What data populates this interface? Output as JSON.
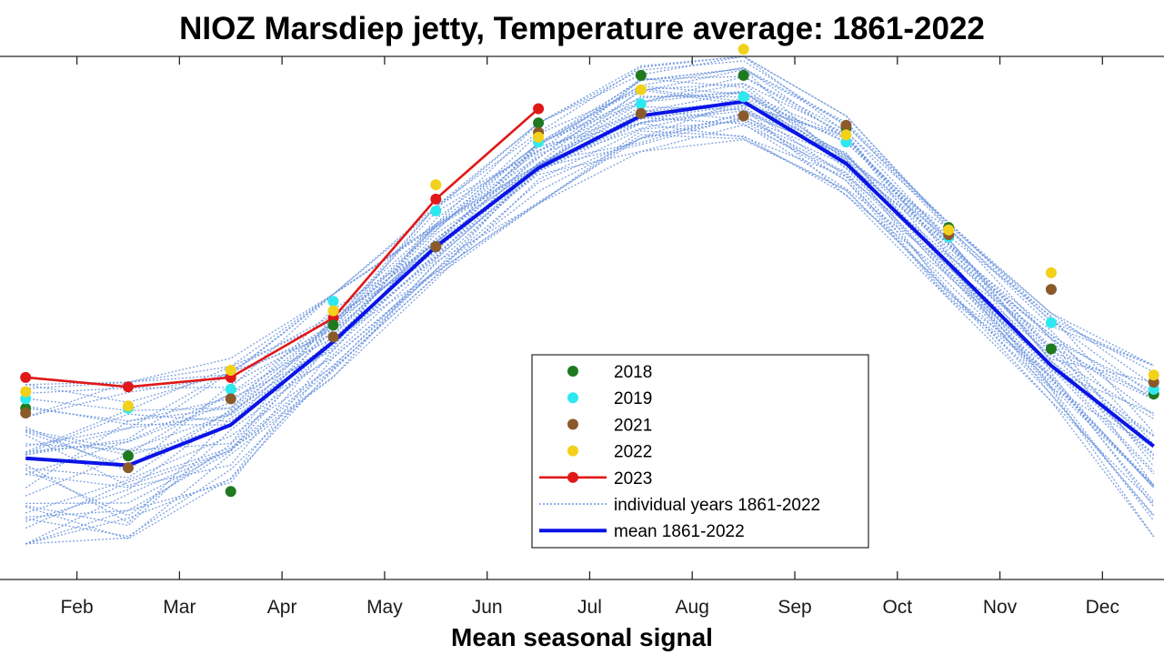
{
  "chart_data": {
    "type": "line",
    "title": "NIOZ Marsdiep jetty, Temperature average: 1861-2022",
    "xlabel": "Mean seasonal signal",
    "ylabel": "",
    "tick_labels": [
      "Feb",
      "Mar",
      "Apr",
      "May",
      "Jun",
      "Jul",
      "Aug",
      "Sep",
      "Oct",
      "Nov",
      "Dec"
    ],
    "x_domain": [
      0.75,
      12.1
    ],
    "y_domain": [
      -1,
      21
    ],
    "grid": false,
    "legend_position": "lower-center",
    "colors": {
      "mean": "#0a14e6",
      "individual": "#6f97de",
      "2018": "#1f7a1f",
      "2019": "#2ee8f0",
      "2021": "#8b5a2b",
      "2022": "#f3d11a",
      "2023": "#e01818"
    },
    "mean": {
      "name": "mean 1861-2022",
      "x": [
        1,
        2,
        3,
        4,
        5,
        6,
        7,
        8,
        9,
        10,
        11,
        12
      ],
      "y": [
        4.1,
        3.8,
        5.5,
        9.0,
        13.0,
        16.3,
        18.5,
        19.1,
        16.5,
        12.3,
        8.0,
        4.6
      ]
    },
    "individual_years": {
      "name": "individual years 1861-2022",
      "count_shown": 40,
      "envelope_low": [
        0.5,
        0.3,
        3.0,
        7.5,
        11.5,
        14.8,
        17.0,
        17.5,
        15.0,
        10.8,
        6.5,
        0.8
      ],
      "envelope_high": [
        7.2,
        7.3,
        8.3,
        11.0,
        14.7,
        18.2,
        20.6,
        21.0,
        18.5,
        14.0,
        10.2,
        8.0
      ]
    },
    "series": [
      {
        "name": "2018",
        "x": [
          1,
          2,
          3,
          4,
          5,
          6,
          7,
          8,
          9,
          10,
          11,
          12
        ],
        "y": [
          6.2,
          4.2,
          2.7,
          9.7,
          13.0,
          18.2,
          20.2,
          20.2,
          18.0,
          13.8,
          8.7,
          6.8
        ]
      },
      {
        "name": "2019",
        "x": [
          1,
          2,
          3,
          4,
          5,
          6,
          7,
          8,
          9,
          10,
          11,
          12
        ],
        "y": [
          6.6,
          6.2,
          7.0,
          10.7,
          14.5,
          17.4,
          19.0,
          19.3,
          17.4,
          13.4,
          9.8,
          7.0
        ]
      },
      {
        "name": "2021",
        "x": [
          1,
          2,
          3,
          4,
          5,
          6,
          7,
          8,
          9,
          10,
          11,
          12
        ],
        "y": [
          6.0,
          3.7,
          6.6,
          9.2,
          13.0,
          17.8,
          18.6,
          18.5,
          18.1,
          13.5,
          11.2,
          7.3
        ]
      },
      {
        "name": "2022",
        "x": [
          1,
          2,
          3,
          4,
          5,
          6,
          7,
          8,
          9,
          10,
          11,
          12
        ],
        "y": [
          6.9,
          6.3,
          7.8,
          10.3,
          15.6,
          17.6,
          19.6,
          21.3,
          17.7,
          13.7,
          11.9,
          7.6
        ]
      },
      {
        "name": "2023",
        "x": [
          1,
          2,
          3,
          4,
          5,
          6
        ],
        "y": [
          7.5,
          7.1,
          7.5,
          10.0,
          15.0,
          18.8
        ]
      }
    ],
    "legend": [
      {
        "label": "2018",
        "kind": "dot",
        "color_key": "2018"
      },
      {
        "label": "2019",
        "kind": "dot",
        "color_key": "2019"
      },
      {
        "label": "2021",
        "kind": "dot",
        "color_key": "2021"
      },
      {
        "label": "2022",
        "kind": "dot",
        "color_key": "2022"
      },
      {
        "label": "2023",
        "kind": "line-dot",
        "color_key": "2023"
      },
      {
        "label": "individual years 1861-2022",
        "kind": "dotted",
        "color_key": "individual"
      },
      {
        "label": "mean 1861-2022",
        "kind": "thick",
        "color_key": "mean"
      }
    ]
  }
}
